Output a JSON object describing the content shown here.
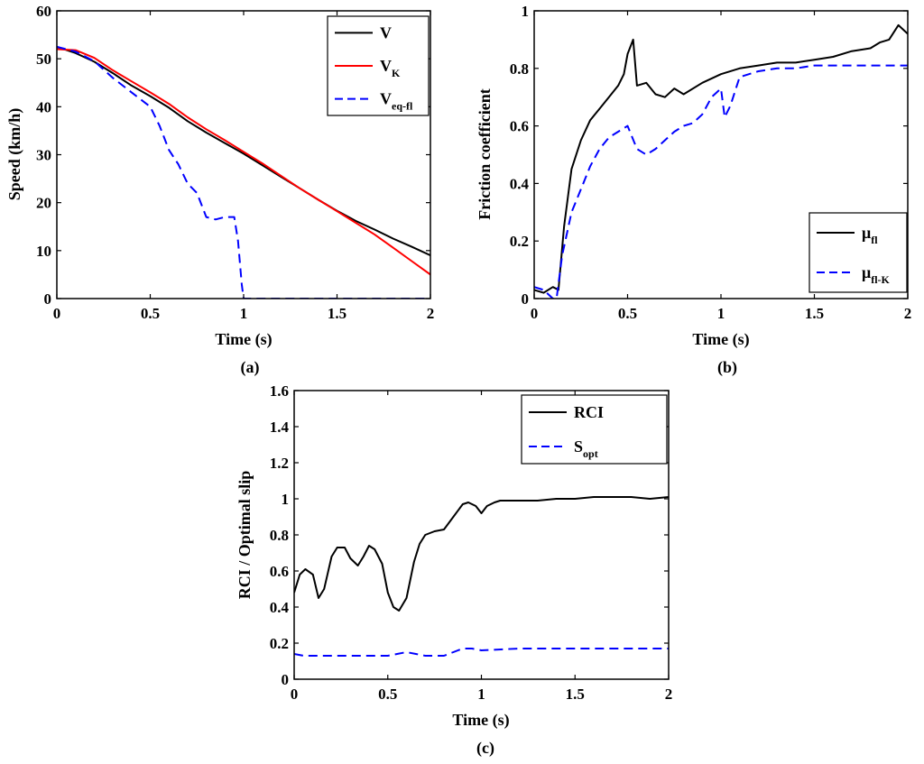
{
  "chart_data": [
    {
      "id": "a",
      "type": "line",
      "caption": "(a)",
      "xlabel": "Time (s)",
      "ylabel": "Speed (km/h)",
      "xlim": [
        0,
        2
      ],
      "ylim": [
        0,
        60
      ],
      "xticks": [
        0,
        0.5,
        1,
        1.5,
        2
      ],
      "xtick_labels": [
        "0",
        "0.5",
        "1",
        "1.5",
        "2"
      ],
      "yticks": [
        0,
        10,
        20,
        30,
        40,
        50,
        60
      ],
      "ytick_labels": [
        "0",
        "10",
        "20",
        "30",
        "40",
        "50",
        "60"
      ],
      "legend_position": "top-right",
      "series": [
        {
          "name": "V",
          "legend_main": "V",
          "legend_sub": "",
          "color": "#000000",
          "dash": "solid",
          "x": [
            0,
            0.1,
            0.2,
            0.3,
            0.4,
            0.5,
            0.6,
            0.7,
            0.8,
            0.9,
            1.0,
            1.1,
            1.2,
            1.3,
            1.4,
            1.5,
            1.6,
            1.7,
            1.8,
            1.9,
            2.0
          ],
          "y": [
            52.5,
            51.2,
            49.4,
            47.0,
            44.4,
            42.2,
            39.8,
            37.0,
            34.6,
            32.4,
            30.2,
            27.8,
            25.4,
            23.0,
            20.6,
            18.3,
            16.2,
            14.4,
            12.5,
            10.8,
            9.0
          ]
        },
        {
          "name": "V_K",
          "legend_main": "V",
          "legend_sub": "K",
          "color": "#ff0000",
          "dash": "solid",
          "x": [
            0,
            0.1,
            0.2,
            0.3,
            0.4,
            0.5,
            0.6,
            0.7,
            0.8,
            0.9,
            1.0,
            1.1,
            1.2,
            1.3,
            1.4,
            1.5,
            1.6,
            1.7,
            1.8,
            1.9,
            2.0
          ],
          "y": [
            52.0,
            51.8,
            50.2,
            47.6,
            45.3,
            43.0,
            40.6,
            37.8,
            35.3,
            33.0,
            30.6,
            28.2,
            25.6,
            23.0,
            20.6,
            18.2,
            15.8,
            13.4,
            10.6,
            7.8,
            5.0
          ]
        },
        {
          "name": "V_eq-fl",
          "legend_main": "V",
          "legend_sub": "eq-fl",
          "color": "#0000ff",
          "dash": "dashed",
          "x": [
            0,
            0.1,
            0.2,
            0.3,
            0.4,
            0.5,
            0.55,
            0.6,
            0.65,
            0.7,
            0.75,
            0.8,
            0.85,
            0.9,
            0.95,
            0.97,
            0.99,
            1.0,
            1.5,
            2.0
          ],
          "y": [
            52.5,
            51.5,
            49.5,
            46.0,
            43.0,
            40.0,
            36.0,
            31.0,
            28.0,
            24.0,
            22.0,
            17.0,
            16.5,
            17.0,
            17.0,
            12.0,
            3.0,
            0,
            0,
            0
          ]
        }
      ]
    },
    {
      "id": "b",
      "type": "line",
      "caption": "(b)",
      "xlabel": "Time (s)",
      "ylabel": "Friction coefficient",
      "xlim": [
        0,
        2
      ],
      "ylim": [
        0,
        1
      ],
      "xticks": [
        0,
        0.5,
        1,
        1.5,
        2
      ],
      "xtick_labels": [
        "0",
        "0.5",
        "1",
        "1.5",
        "2"
      ],
      "yticks": [
        0,
        0.2,
        0.4,
        0.6,
        0.8,
        1
      ],
      "ytick_labels": [
        "0",
        "0.2",
        "0.4",
        "0.6",
        "0.8",
        "1"
      ],
      "legend_position": "bottom-right",
      "series": [
        {
          "name": "mu_fl",
          "legend_main": "μ",
          "legend_sub": "fl",
          "color": "#000000",
          "dash": "solid",
          "x": [
            0,
            0.05,
            0.1,
            0.13,
            0.16,
            0.2,
            0.25,
            0.3,
            0.35,
            0.4,
            0.45,
            0.48,
            0.5,
            0.53,
            0.55,
            0.6,
            0.65,
            0.7,
            0.75,
            0.8,
            0.9,
            1.0,
            1.1,
            1.2,
            1.3,
            1.4,
            1.5,
            1.6,
            1.7,
            1.8,
            1.85,
            1.9,
            1.95,
            2.0
          ],
          "y": [
            0.03,
            0.02,
            0.04,
            0.03,
            0.25,
            0.45,
            0.55,
            0.62,
            0.66,
            0.7,
            0.74,
            0.78,
            0.85,
            0.9,
            0.74,
            0.75,
            0.71,
            0.7,
            0.73,
            0.71,
            0.75,
            0.78,
            0.8,
            0.81,
            0.82,
            0.82,
            0.83,
            0.84,
            0.86,
            0.87,
            0.89,
            0.9,
            0.95,
            0.92
          ]
        },
        {
          "name": "mu_fl-K",
          "legend_main": "μ",
          "legend_sub": "fl-K",
          "color": "#0000ff",
          "dash": "dashed",
          "x": [
            0,
            0.05,
            0.1,
            0.12,
            0.15,
            0.2,
            0.25,
            0.3,
            0.35,
            0.4,
            0.45,
            0.5,
            0.55,
            0.6,
            0.65,
            0.7,
            0.75,
            0.8,
            0.85,
            0.9,
            0.95,
            1.0,
            1.02,
            1.05,
            1.1,
            1.2,
            1.3,
            1.4,
            1.5,
            1.6,
            1.7,
            1.8,
            1.9,
            2.0
          ],
          "y": [
            0.04,
            0.03,
            0.0,
            0.0,
            0.15,
            0.3,
            0.38,
            0.46,
            0.52,
            0.56,
            0.58,
            0.6,
            0.52,
            0.5,
            0.52,
            0.55,
            0.58,
            0.6,
            0.61,
            0.64,
            0.7,
            0.73,
            0.63,
            0.67,
            0.77,
            0.79,
            0.8,
            0.8,
            0.81,
            0.81,
            0.81,
            0.81,
            0.81,
            0.81
          ]
        }
      ]
    },
    {
      "id": "c",
      "type": "line",
      "caption": "(c)",
      "xlabel": "Time (s)",
      "ylabel": "RCI / Optimal slip",
      "xlim": [
        0,
        2
      ],
      "ylim": [
        0,
        1.6
      ],
      "xticks": [
        0,
        0.5,
        1,
        1.5,
        2
      ],
      "xtick_labels": [
        "0",
        "0.5",
        "1",
        "1.5",
        "2"
      ],
      "yticks": [
        0,
        0.2,
        0.4,
        0.6,
        0.8,
        1,
        1.2,
        1.4,
        1.6
      ],
      "ytick_labels": [
        "0",
        "0.2",
        "0.4",
        "0.6",
        "0.8",
        "1",
        "1.2",
        "1.4",
        "1.6"
      ],
      "legend_position": "top-right",
      "series": [
        {
          "name": "RCI",
          "legend_main": "RCI",
          "legend_sub": "",
          "color": "#000000",
          "dash": "solid",
          "x": [
            0,
            0.03,
            0.06,
            0.1,
            0.13,
            0.16,
            0.2,
            0.23,
            0.27,
            0.3,
            0.34,
            0.37,
            0.4,
            0.43,
            0.47,
            0.5,
            0.53,
            0.56,
            0.6,
            0.64,
            0.67,
            0.7,
            0.75,
            0.8,
            0.85,
            0.9,
            0.93,
            0.97,
            1.0,
            1.03,
            1.07,
            1.1,
            1.2,
            1.3,
            1.4,
            1.5,
            1.6,
            1.7,
            1.8,
            1.9,
            2.0
          ],
          "y": [
            0.48,
            0.58,
            0.61,
            0.58,
            0.45,
            0.5,
            0.68,
            0.73,
            0.73,
            0.67,
            0.63,
            0.68,
            0.74,
            0.72,
            0.64,
            0.48,
            0.4,
            0.38,
            0.45,
            0.65,
            0.75,
            0.8,
            0.82,
            0.83,
            0.9,
            0.97,
            0.98,
            0.96,
            0.92,
            0.96,
            0.98,
            0.99,
            0.99,
            0.99,
            1.0,
            1.0,
            1.01,
            1.01,
            1.01,
            1.0,
            1.01
          ]
        },
        {
          "name": "S_opt",
          "legend_main": "S",
          "legend_sub": "opt",
          "color": "#0000ff",
          "dash": "dashed",
          "x": [
            0,
            0.05,
            0.1,
            0.2,
            0.3,
            0.4,
            0.5,
            0.55,
            0.6,
            0.65,
            0.7,
            0.8,
            0.85,
            0.9,
            0.95,
            1.0,
            1.2,
            1.5,
            2.0
          ],
          "y": [
            0.14,
            0.13,
            0.13,
            0.13,
            0.13,
            0.13,
            0.13,
            0.14,
            0.15,
            0.14,
            0.13,
            0.13,
            0.15,
            0.17,
            0.17,
            0.16,
            0.17,
            0.17,
            0.17
          ]
        }
      ]
    }
  ]
}
